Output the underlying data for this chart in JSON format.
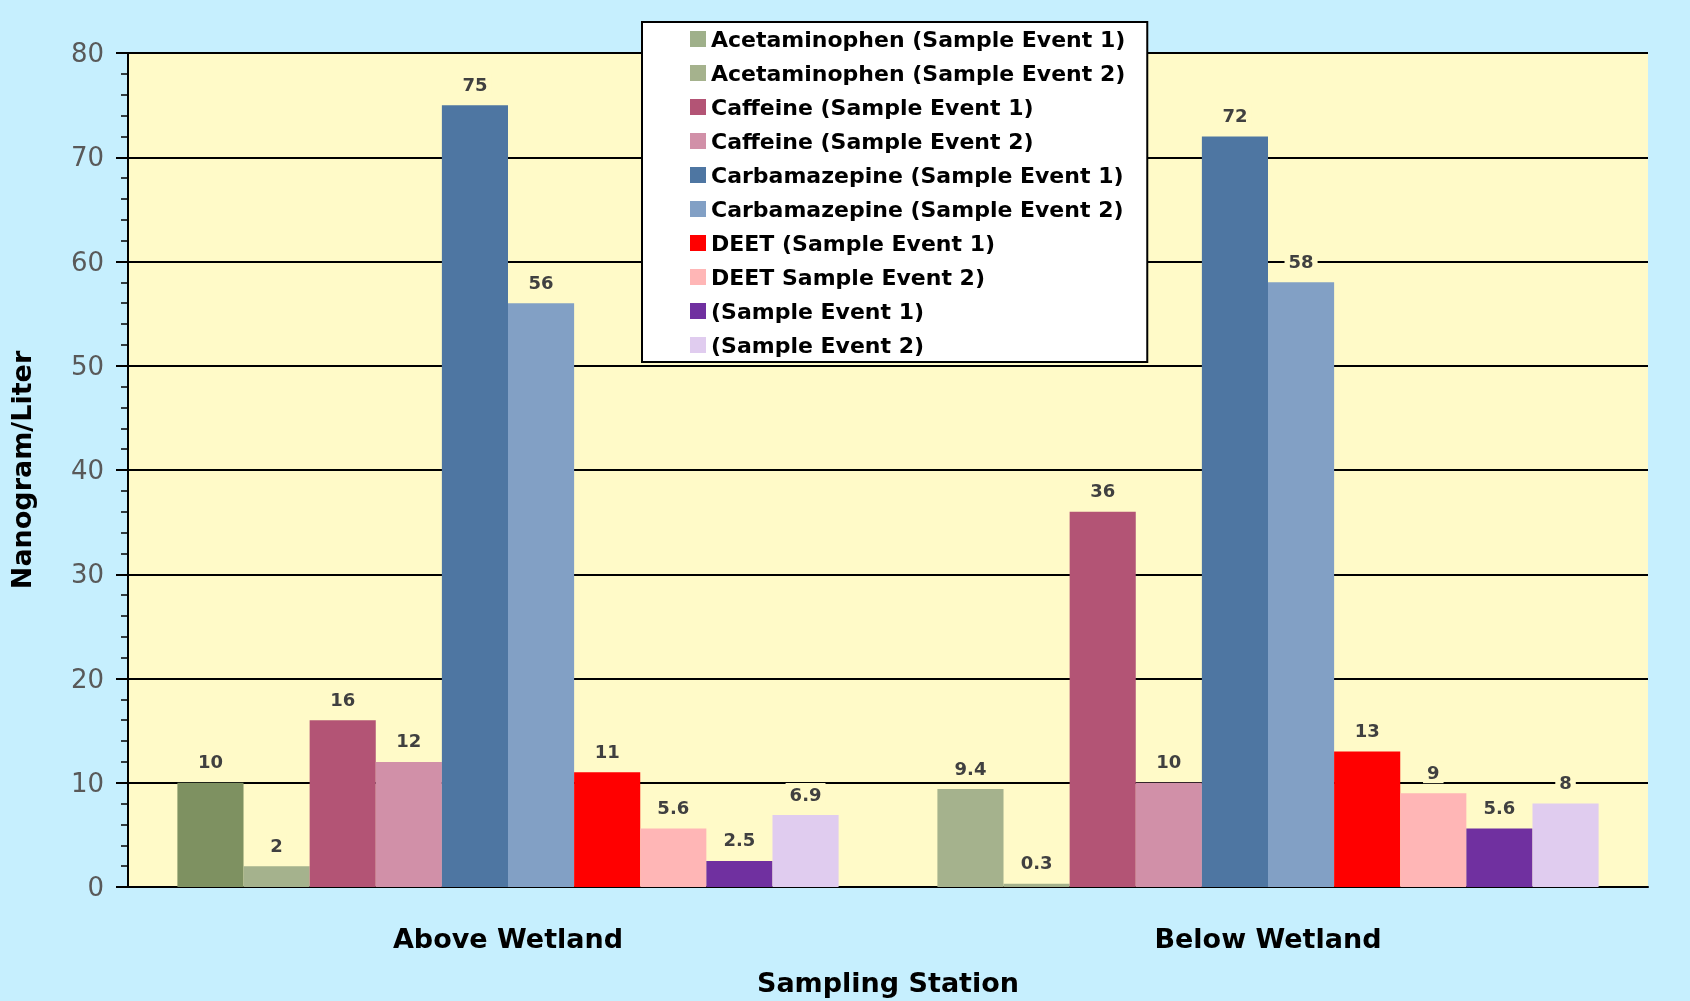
{
  "chart_data": {
    "type": "bar",
    "xlabel": "Sampling Station",
    "ylabel": "Nanogram/Liter",
    "categories": [
      "Above Wetland",
      "Below Wetland"
    ],
    "series": [
      {
        "name": "Acetaminophen (Sample Event 1)",
        "color": "#9fb08a",
        "colors": [
          "#7e9161",
          "#a5b28d"
        ],
        "values": [
          10,
          9.4
        ]
      },
      {
        "name": "Acetaminophen (Sample Event 2)",
        "color": "#a5b28d",
        "values": [
          2,
          0.3
        ]
      },
      {
        "name": "Caffeine (Sample Event 1)",
        "color": "#b35475",
        "values": [
          16,
          36
        ]
      },
      {
        "name": "Caffeine (Sample Event 2)",
        "color": "#d190a8",
        "values": [
          12,
          10
        ]
      },
      {
        "name": "Carbamazepine (Sample Event 1)",
        "color": "#4e76a2",
        "values": [
          75,
          72
        ]
      },
      {
        "name": "Carbamazepine (Sample Event 2)",
        "color": "#82a0c5",
        "values": [
          56,
          58
        ]
      },
      {
        "name": "DEET (Sample Event 1)",
        "color": "#ff0000",
        "values": [
          11,
          13
        ]
      },
      {
        "name": "DEET Sample Event 2)",
        "color": "#ffb6b6",
        "values": [
          5.6,
          9
        ]
      },
      {
        "name": "(Sample Event 1)",
        "color": "#7030a0",
        "values": [
          2.5,
          5.6
        ]
      },
      {
        "name": "(Sample Event 2)",
        "color": "#e0ccef",
        "values": [
          6.9,
          8
        ]
      }
    ],
    "ylim": [
      0,
      80
    ],
    "yticks": [
      0,
      {
        "value": 2,
        "label": null
      },
      {
        "value": 4,
        "label": null
      },
      {
        "value": 6,
        "label": null
      },
      {
        "value": 8,
        "label": null
      },
      10,
      {
        "value": 12,
        "label": null
      },
      {
        "value": 14,
        "label": null
      },
      {
        "value": 16,
        "label": null
      },
      {
        "value": 18,
        "label": null
      },
      20,
      {
        "value": 22,
        "label": null
      },
      {
        "value": 24,
        "label": null
      },
      {
        "value": 26,
        "label": null
      },
      {
        "value": 28,
        "label": null
      },
      30,
      {
        "value": 32,
        "label": null
      },
      {
        "value": 34,
        "label": null
      },
      {
        "value": 36,
        "label": null
      },
      {
        "value": 38,
        "label": null
      },
      40,
      {
        "value": 42,
        "label": null
      },
      {
        "value": 44,
        "label": null
      },
      {
        "value": 46,
        "label": null
      },
      {
        "value": 48,
        "label": null
      },
      50,
      {
        "value": 52,
        "label": null
      },
      {
        "value": 54,
        "label": null
      },
      {
        "value": 56,
        "label": null
      },
      {
        "value": 58,
        "label": null
      },
      60,
      {
        "value": 62,
        "label": null
      },
      {
        "value": 64,
        "label": null
      },
      {
        "value": 66,
        "label": null
      },
      {
        "value": 68,
        "label": null
      },
      70,
      {
        "value": 72,
        "label": null
      },
      {
        "value": 74,
        "label": null
      },
      {
        "value": 76,
        "label": null
      },
      {
        "value": 78,
        "label": null
      },
      80
    ],
    "grid": "y",
    "legend": "top",
    "data_labels": true
  }
}
